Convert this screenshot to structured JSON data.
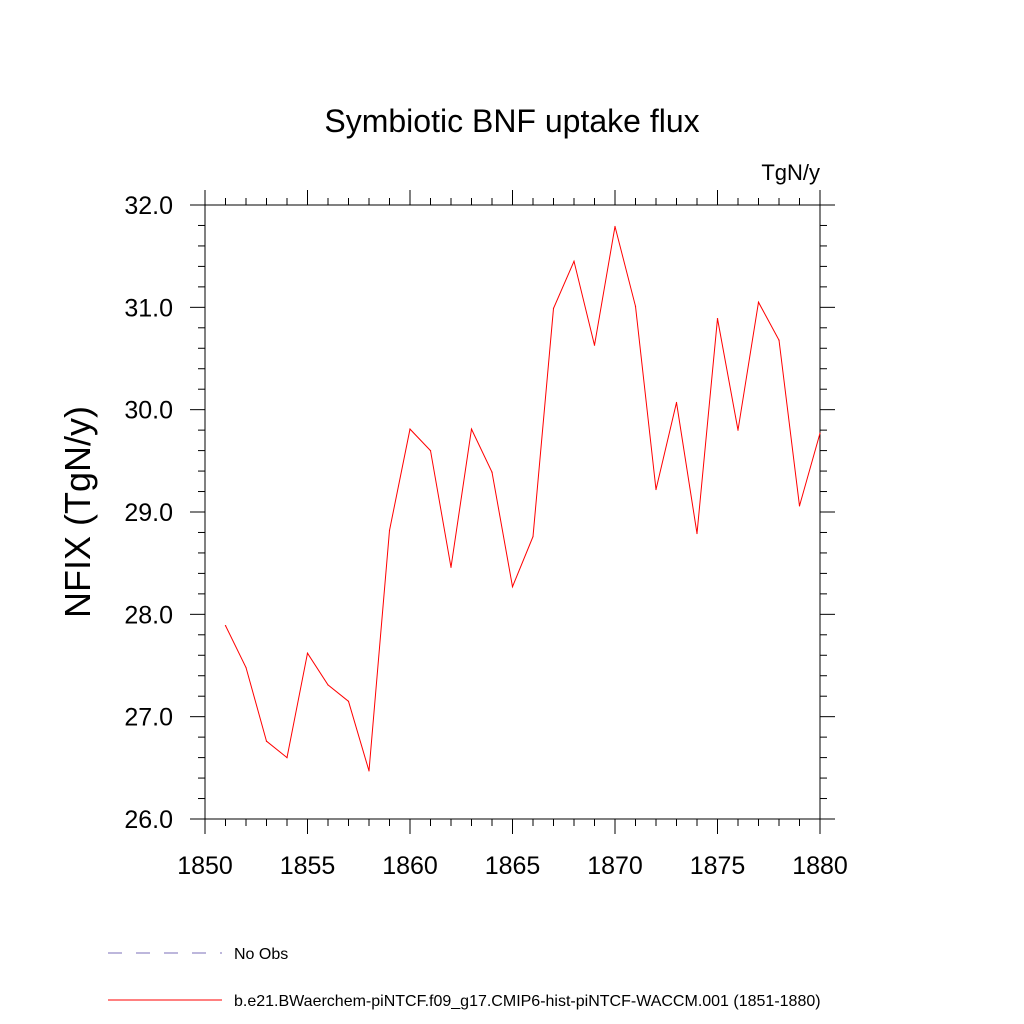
{
  "chart_data": {
    "type": "line",
    "title": "Symbiotic BNF uptake flux",
    "units": "TgN/y",
    "ylabel": "NFIX  (TgN/y)",
    "xlabel": "",
    "xlim": [
      1850,
      1880
    ],
    "ylim": [
      26.0,
      32.0
    ],
    "x_ticks": [
      1850,
      1855,
      1860,
      1865,
      1870,
      1875,
      1880
    ],
    "x_tick_labels": [
      "1850",
      "1855",
      "1860",
      "1865",
      "1870",
      "1875",
      "1880"
    ],
    "y_ticks": [
      26.0,
      27.0,
      28.0,
      29.0,
      30.0,
      31.0,
      32.0
    ],
    "y_tick_labels": [
      "26.0",
      "27.0",
      "28.0",
      "29.0",
      "30.0",
      "31.0",
      "32.0"
    ],
    "grid": false,
    "legend_placement": "bottom",
    "series": [
      {
        "name": "b.e21.BWaerchem-piNTCF.f09_g17.CMIP6-hist-piNTCF-WACCM.001 (1851-1880)",
        "color": "#ff0000",
        "style": "solid",
        "x": [
          1851,
          1852,
          1853,
          1854,
          1855,
          1856,
          1857,
          1858,
          1859,
          1860,
          1861,
          1862,
          1863,
          1864,
          1865,
          1866,
          1867,
          1868,
          1869,
          1870,
          1871,
          1872,
          1873,
          1874,
          1875,
          1876,
          1877,
          1878,
          1879,
          1880
        ],
        "values": [
          27.89,
          27.48,
          26.76,
          26.6,
          27.62,
          27.31,
          27.15,
          26.47,
          28.82,
          29.81,
          29.6,
          28.46,
          29.81,
          29.39,
          28.27,
          28.76,
          30.99,
          31.45,
          30.63,
          31.79,
          31.01,
          29.22,
          30.07,
          28.79,
          30.89,
          29.8,
          31.05,
          30.68,
          29.06,
          29.77
        ]
      }
    ],
    "legend": [
      {
        "label": "No Obs",
        "color": "#7b6fb8",
        "style": "dashed"
      },
      {
        "label": "b.e21.BWaerchem-piNTCF.f09_g17.CMIP6-hist-piNTCF-WACCM.001 (1851-1880)",
        "color": "#ff0000",
        "style": "solid"
      }
    ]
  }
}
